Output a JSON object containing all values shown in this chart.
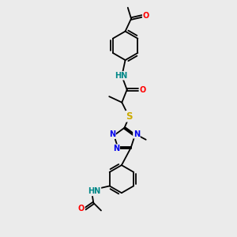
{
  "background_color": "#ebebeb",
  "N_color": "#0000ee",
  "O_color": "#ff0000",
  "S_color": "#ccaa00",
  "H_color": "#008888",
  "bond_color": "#000000",
  "bond_lw": 1.3,
  "font_size": 7.0,
  "xlim": [
    0,
    10
  ],
  "ylim": [
    0,
    14
  ]
}
